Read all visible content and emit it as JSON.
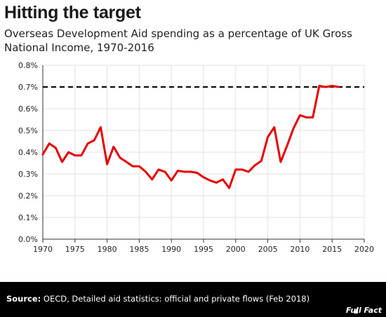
{
  "chart_data": {
    "type": "line",
    "title": "Hitting the target",
    "subtitle": "Overseas Development Aid spending as a percentage of UK Gross National Income, 1970-2016",
    "xlim": [
      1970,
      2020
    ],
    "ylim": [
      0,
      0.8
    ],
    "x_ticks": [
      "1970",
      "1975",
      "1980",
      "1985",
      "1990",
      "1995",
      "2000",
      "2005",
      "2010",
      "2015",
      "2020"
    ],
    "y_ticks": [
      "0.0%",
      "0.1%",
      "0.2%",
      "0.3%",
      "0.4%",
      "0.5%",
      "0.6%",
      "0.7%",
      "0.8%"
    ],
    "grid": true,
    "target_line": 0.7,
    "series": [
      {
        "color": "#e60000",
        "x": [
          1970,
          1971,
          1972,
          1973,
          1974,
          1975,
          1976,
          1977,
          1978,
          1979,
          1980,
          1981,
          1982,
          1983,
          1984,
          1985,
          1986,
          1987,
          1988,
          1989,
          1990,
          1991,
          1992,
          1993,
          1994,
          1995,
          1996,
          1997,
          1998,
          1999,
          2000,
          2001,
          2002,
          2003,
          2004,
          2005,
          2006,
          2007,
          2008,
          2009,
          2010,
          2011,
          2012,
          2013,
          2014,
          2015,
          2016
        ],
        "values": [
          0.39,
          0.44,
          0.42,
          0.355,
          0.4,
          0.385,
          0.385,
          0.44,
          0.455,
          0.515,
          0.345,
          0.425,
          0.375,
          0.355,
          0.335,
          0.335,
          0.31,
          0.275,
          0.32,
          0.31,
          0.27,
          0.315,
          0.31,
          0.31,
          0.305,
          0.285,
          0.27,
          0.26,
          0.275,
          0.235,
          0.32,
          0.32,
          0.31,
          0.34,
          0.36,
          0.47,
          0.515,
          0.355,
          0.43,
          0.51,
          0.57,
          0.56,
          0.56,
          0.705,
          0.7,
          0.705,
          0.7
        ]
      }
    ]
  },
  "footer": {
    "source_label": "Source:",
    "source_text": " OECD, Detailed aid statistics: official and private flows (Feb 2018)",
    "logo_text": "Full Fact"
  }
}
